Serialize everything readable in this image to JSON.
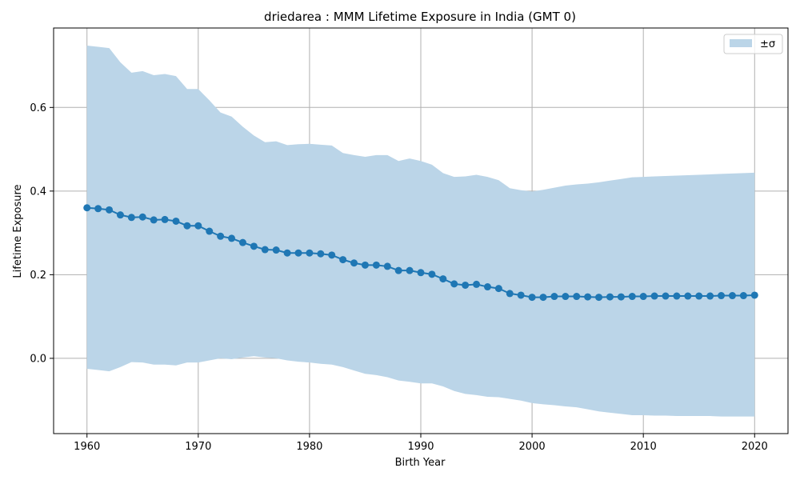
{
  "chart_data": {
    "type": "line",
    "title": "driedarea : MMM Lifetime Exposure in India (GMT 0)",
    "xlabel": "Birth Year",
    "ylabel": "Lifetime Exposure",
    "xlim": [
      1957,
      2023
    ],
    "ylim": [
      -0.18,
      0.79
    ],
    "xticks": [
      1960,
      1970,
      1980,
      1990,
      2000,
      2010,
      2020
    ],
    "yticks": [
      0.0,
      0.2,
      0.4,
      0.6
    ],
    "ytick_labels": [
      "0.0",
      "0.2",
      "0.4",
      "0.6"
    ],
    "grid": true,
    "legend_position": "top-right",
    "legend_label": "±σ",
    "colors": {
      "line": "#1f77b4",
      "band": "#bbd5e8",
      "grid": "#b0b0b0"
    },
    "x": [
      1960,
      1961,
      1962,
      1963,
      1964,
      1965,
      1966,
      1967,
      1968,
      1969,
      1970,
      1971,
      1972,
      1973,
      1974,
      1975,
      1976,
      1977,
      1978,
      1979,
      1980,
      1981,
      1982,
      1983,
      1984,
      1985,
      1986,
      1987,
      1988,
      1989,
      1990,
      1991,
      1992,
      1993,
      1994,
      1995,
      1996,
      1997,
      1998,
      1999,
      2000,
      2001,
      2002,
      2003,
      2004,
      2005,
      2006,
      2007,
      2008,
      2009,
      2010,
      2011,
      2012,
      2013,
      2014,
      2015,
      2016,
      2017,
      2018,
      2019,
      2020
    ],
    "series": [
      {
        "values": [
          0.36,
          0.358,
          0.355,
          0.343,
          0.337,
          0.338,
          0.331,
          0.332,
          0.328,
          0.317,
          0.317,
          0.304,
          0.292,
          0.287,
          0.277,
          0.268,
          0.26,
          0.259,
          0.252,
          0.252,
          0.252,
          0.25,
          0.247,
          0.236,
          0.228,
          0.223,
          0.223,
          0.22,
          0.21,
          0.21,
          0.205,
          0.201,
          0.19,
          0.178,
          0.175,
          0.177,
          0.171,
          0.167,
          0.155,
          0.151,
          0.146,
          0.146,
          0.148,
          0.148,
          0.148,
          0.147,
          0.146,
          0.147,
          0.147,
          0.148,
          0.148,
          0.149,
          0.149,
          0.149,
          0.149,
          0.149,
          0.149,
          0.15,
          0.15,
          0.15,
          0.151
        ]
      }
    ],
    "band_upper": [
      0.748,
      0.745,
      0.742,
      0.708,
      0.683,
      0.687,
      0.677,
      0.68,
      0.675,
      0.644,
      0.644,
      0.617,
      0.588,
      0.578,
      0.554,
      0.533,
      0.517,
      0.519,
      0.51,
      0.512,
      0.513,
      0.511,
      0.509,
      0.491,
      0.486,
      0.482,
      0.486,
      0.486,
      0.472,
      0.478,
      0.472,
      0.463,
      0.443,
      0.434,
      0.435,
      0.439,
      0.434,
      0.426,
      0.407,
      0.402,
      0.399,
      0.403,
      0.408,
      0.413,
      0.416,
      0.418,
      0.421,
      0.425,
      0.429,
      0.433,
      0.434,
      0.435,
      0.436,
      0.437,
      0.438,
      0.439,
      0.44,
      0.441,
      0.442,
      0.443,
      0.444
    ],
    "band_lower": [
      -0.025,
      -0.028,
      -0.031,
      -0.021,
      -0.009,
      -0.01,
      -0.015,
      -0.015,
      -0.017,
      -0.01,
      -0.01,
      -0.005,
      0.0,
      -0.002,
      0.002,
      0.005,
      0.002,
      0.0,
      -0.005,
      -0.008,
      -0.01,
      -0.013,
      -0.015,
      -0.021,
      -0.029,
      -0.037,
      -0.04,
      -0.045,
      -0.053,
      -0.056,
      -0.06,
      -0.06,
      -0.067,
      -0.078,
      -0.085,
      -0.088,
      -0.092,
      -0.093,
      -0.097,
      -0.101,
      -0.107,
      -0.11,
      -0.112,
      -0.115,
      -0.117,
      -0.122,
      -0.127,
      -0.13,
      -0.133,
      -0.136,
      -0.136,
      -0.137,
      -0.137,
      -0.138,
      -0.138,
      -0.138,
      -0.138,
      -0.139,
      -0.139,
      -0.139,
      -0.139
    ]
  }
}
